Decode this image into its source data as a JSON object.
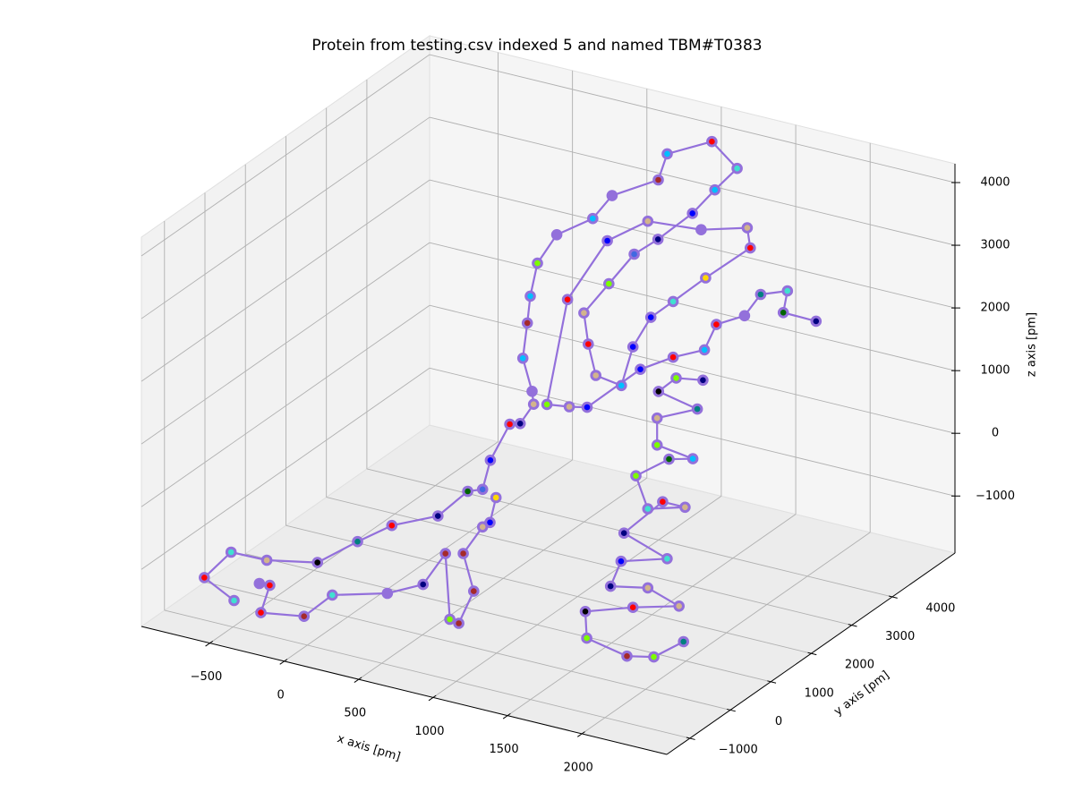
{
  "chart_data": {
    "type": "line3d",
    "title": "Protein from testing.csv indexed 5 and named TBM#T0383",
    "xlabel": "x axis [pm]",
    "ylabel": "y axis [pm]",
    "zlabel": "z axis [pm]",
    "xlim": [
      -960,
      2570
    ],
    "ylim": [
      -1570,
      5550
    ],
    "zlim": [
      -1910,
      4300
    ],
    "xticks": [
      {
        "value": -500,
        "label": "−500"
      },
      0,
      500,
      1000,
      1500,
      2000
    ],
    "yticks": [
      {
        "value": -1000,
        "label": "−1000"
      },
      0,
      1000,
      2000,
      3000,
      4000
    ],
    "zticks": [
      {
        "value": -1000,
        "label": "−1000"
      },
      0,
      1000,
      2000,
      3000,
      4000
    ],
    "grid": true,
    "series": [
      {
        "color": "#9370db",
        "x": [
          -710,
          -910,
          -730,
          -490,
          -150,
          120,
          350,
          660,
          860,
          960,
          550,
          680,
          750,
          840,
          830,
          360,
          390,
          410,
          50,
          180,
          150,
          280,
          590,
          650,
          950,
          1120,
          970,
          820,
          860,
          700,
          530,
          770,
          800,
          850,
          1430,
          1100,
          1220,
          1370,
          1180,
          1480,
          1460,
          1150,
          520,
          520,
          660,
          930,
          1080,
          1200,
          1150,
          1370,
          1580,
          1660,
          1850,
          1550,
          1730,
          2110,
          2330,
          null,
          1570,
          1390,
          1680,
          1940,
          1670,
          1670,
          1910,
          1750,
          1990,
          2070,
          2320,
          2170,
          1910,
          2200,
          1890,
          1820,
          2070,
          2280,
          1970,
          1650,
          1660,
          1930,
          2110,
          2310,
          null,
          1050,
          1010,
          960,
          830,
          900,
          800,
          740,
          710,
          560,
          320,
          -50,
          -240,
          -530,
          -470,
          -540
        ],
        "y": [
          -200,
          -200,
          -200,
          -200,
          -200,
          -200,
          -200,
          -200,
          -200,
          -200,
          1500,
          1500,
          1500,
          1500,
          1500,
          3000,
          3000,
          3000,
          4500,
          4500,
          5500,
          5500,
          5500,
          5500,
          5500,
          5500,
          5500,
          5500,
          4500,
          4500,
          4500,
          3000,
          3000,
          3000,
          1500,
          3000,
          3000,
          3000,
          4500,
          4500,
          4500,
          4500,
          5500,
          4500,
          3000,
          1500,
          1500,
          1500,
          3000,
          3000,
          3000,
          3000,
          3000,
          4500,
          4500,
          3000,
          3000,
          null,
          3000,
          3000,
          1500,
          1500,
          1500,
          1500,
          1500,
          1500,
          -200,
          -200,
          -200,
          -200,
          -200,
          -200,
          -200,
          -200,
          -200,
          -200,
          -200,
          -200,
          -200,
          -200,
          -200,
          -200,
          null,
          -200,
          -200,
          -200,
          -200,
          -200,
          -200,
          -200,
          -200,
          -200,
          -200,
          -200,
          -200,
          -200,
          -200,
          -200
        ],
        "z": [
          -1970,
          -1720,
          -1210,
          -1200,
          -1040,
          -550,
          -160,
          170,
          680,
          770,
          230,
          880,
          930,
          1290,
          1490,
          1070,
          1650,
          2090,
          1730,
          2260,
          2050,
          2490,
          2920,
          3370,
          3740,
          3410,
          2980,
          2520,
          2580,
          2250,
          1680,
          2030,
          1550,
          1080,
          1930,
          1680,
          2220,
          2560,
          2150,
          2800,
          3110,
          2900,
          2220,
          2360,
          2180,
          1340,
          1390,
          1450,
          1350,
          1670,
          1910,
          2360,
          2610,
          2100,
          2260,
          2810,
          2800,
          null,
          1420,
          1350,
          1980,
          1850,
          1550,
          1120,
          1040,
          940,
          1580,
          1100,
          1270,
          1270,
          620,
          380,
          160,
          -280,
          -160,
          -330,
          -530,
          -780,
          -1200,
          -1330,
          -1240,
          -880,
          null,
          690,
          270,
          170,
          -330,
          -890,
          -1460,
          -1430,
          -400,
          -980,
          -1260,
          -1500,
          -1950,
          -2060,
          -1590,
          -1600
        ],
        "marker_colors": [
          "#40e0d0",
          "#ff0000",
          "#40e0d0",
          "#d2b48c",
          "#000000",
          "#008080",
          "#ff0000",
          "#000080",
          "#006400",
          "#4169e1",
          "#0000ff",
          "#ff0000",
          "#000080",
          "#d2b48c",
          "#9370db",
          "#00bfff",
          "#a52a2a",
          "#00bfff",
          "#7cfc00",
          "#9370db",
          "#00bfff",
          "#9370db",
          "#a52a2a",
          "#00bfff",
          "#ff0000",
          "#40e0d0",
          "#00bfff",
          "#0000ff",
          "#000080",
          "#4169e1",
          "#7cfc00",
          "#d2b48c",
          "#ff0000",
          "#d2b48c",
          "#00bfff",
          "#0000ff",
          "#0000ff",
          "#40e0d0",
          "#ffd700",
          "#ff0000",
          "#d2b48c",
          "#9370db",
          "#d2b48c",
          "#0000ff",
          "#ff0000",
          "#7cfc00",
          "#d2b48c",
          "#0000ff",
          "#0000ff",
          "#ff0000",
          "#00bfff",
          "#ff0000",
          "#9370db",
          "#008080",
          "#40e0d0",
          "#006400",
          "#000080",
          null,
          "#000080",
          "#7cfc00",
          "#000000",
          "#008080",
          "#d2b48c",
          "#7cfc00",
          "#00bfff",
          "#006400",
          "#7cfc00",
          "#40e0d0",
          "#d2b48c",
          "#ff0000",
          "#000080",
          "#40e0d0",
          "#0000ff",
          "#000080",
          "#d2b48c",
          "#d2b48c",
          "#ff0000",
          "#000000",
          "#7cfc00",
          "#a52a2a",
          "#7cfc00",
          "#008080",
          null,
          "#ffd700",
          "#0000ff",
          "#d2b48c",
          "#a52a2a",
          "#a52a2a",
          "#a52a2a",
          "#7cfc00",
          "#a52a2a",
          "#000080",
          "#9370db",
          "#40e0d0",
          "#a52a2a",
          "#ff0000",
          "#ff0000",
          "#9370db"
        ]
      }
    ]
  }
}
